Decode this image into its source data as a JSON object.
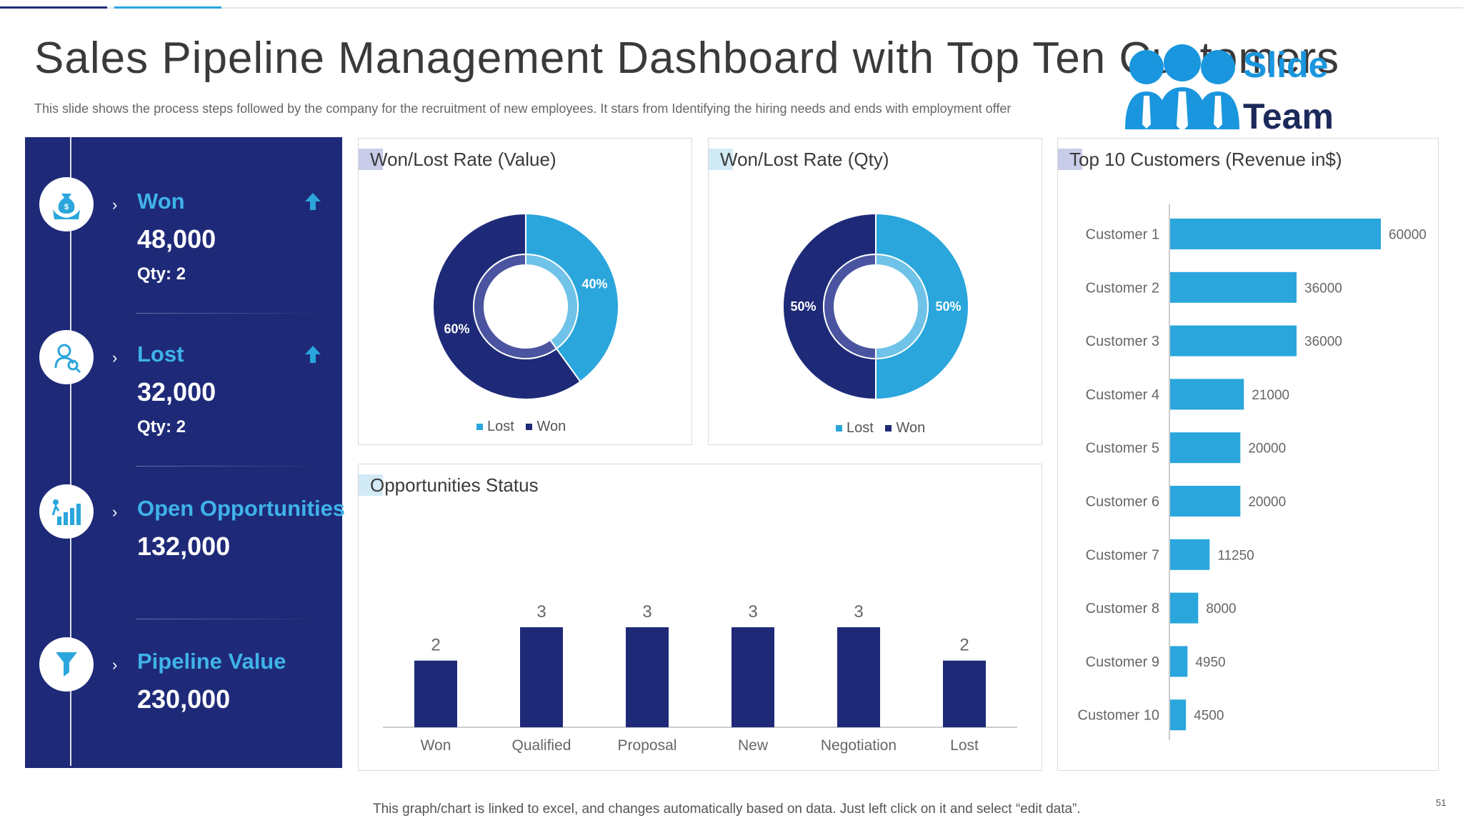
{
  "header": {
    "title": "Sales Pipeline Management Dashboard with Top Ten Customers",
    "subtitle": "This slide shows the process steps followed by the company for the recruitment of new employees. It stars from Identifying the hiring needs and ends with employment offer"
  },
  "logo": {
    "line1": "Slide",
    "line2": "Team"
  },
  "kpis": [
    {
      "label": "Won",
      "value": "48,000",
      "qty": "Qty: 2",
      "icon": "money-bag-hands-icon",
      "trend": "up"
    },
    {
      "label": "Lost",
      "value": "32,000",
      "qty": "Qty: 2",
      "icon": "person-search-icon",
      "trend": "up"
    },
    {
      "label": "Open Opportunities",
      "value": "132,000",
      "icon": "growth-chart-icon"
    },
    {
      "label": "Pipeline Value",
      "value": "230,000",
      "icon": "hand-funnel-icon"
    }
  ],
  "cards": {
    "won_lost_value": {
      "title": "Won/Lost Rate (Value)",
      "legend": [
        "Lost",
        "Won"
      ]
    },
    "won_lost_qty": {
      "title": "Won/Lost Rate (Qty)",
      "legend": [
        "Lost",
        "Won"
      ]
    },
    "opportunities": {
      "title": "Opportunities Status"
    },
    "top_customers": {
      "title": "Top 10 Customers (Revenue in$)"
    }
  },
  "colors": {
    "navy": "#1e2a78",
    "blue": "#2aa6dc",
    "light": "#8fc6e6"
  },
  "chart_data": [
    {
      "type": "pie",
      "title": "Won/Lost Rate (Value)",
      "categories": [
        "Lost",
        "Won"
      ],
      "values": [
        40,
        60
      ],
      "labels": [
        "40%",
        "60%"
      ]
    },
    {
      "type": "pie",
      "title": "Won/Lost Rate (Qty)",
      "categories": [
        "Lost",
        "Won"
      ],
      "values": [
        50,
        50
      ],
      "labels": [
        "50%",
        "50%"
      ]
    },
    {
      "type": "bar",
      "title": "Opportunities Status",
      "categories": [
        "Won",
        "Qualified",
        "Proposal",
        "New",
        "Negotiation",
        "Lost"
      ],
      "values": [
        2,
        3,
        3,
        3,
        3,
        2
      ],
      "ylim": [
        0,
        4
      ]
    },
    {
      "type": "bar",
      "orientation": "horizontal",
      "title": "Top 10 Customers (Revenue in$)",
      "categories": [
        "Customer 1",
        "Customer 2",
        "Customer 3",
        "Customer 4",
        "Customer 5",
        "Customer 6",
        "Customer 7",
        "Customer 8",
        "Customer 9",
        "Customer 10"
      ],
      "values": [
        60000,
        36000,
        36000,
        21000,
        20000,
        20000,
        11250,
        8000,
        4950,
        4500
      ],
      "xlim": [
        0,
        60000
      ]
    }
  ],
  "footer": {
    "note": "This graph/chart is linked to excel, and changes automatically based on data. Just left click on it and select “edit data”.",
    "page": "51"
  }
}
